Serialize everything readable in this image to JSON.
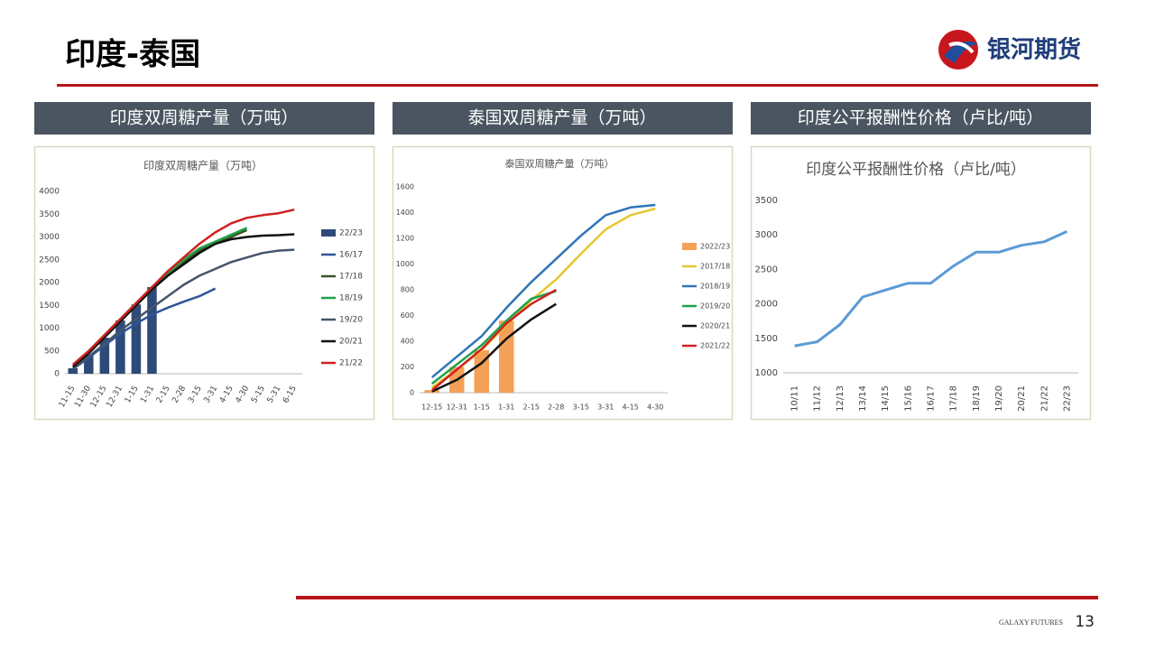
{
  "header": {
    "title": "印度-泰国",
    "logo": "银河期货"
  },
  "panels": [
    "印度双周糖产量（万吨）",
    "泰国双周糖产量（万吨）",
    "印度公平报酬性价格（卢比/吨）"
  ],
  "footer": {
    "brand": "GALAXY FUTURES",
    "page": "13"
  },
  "chart_data": [
    {
      "type": "combo",
      "title": "印度双周糖产量（万吨）",
      "categories": [
        "11-15",
        "11-30",
        "12-15",
        "12-31",
        "1-15",
        "1-31",
        "2-15",
        "2-28",
        "3-15",
        "3-31",
        "4-15",
        "4-30",
        "5-15",
        "5-31",
        "6-15"
      ],
      "ylim": [
        0,
        4000
      ],
      "yticks": [
        0,
        500,
        1000,
        1500,
        2000,
        2500,
        3000,
        3500,
        4000
      ],
      "series": [
        {
          "name": "22/23",
          "type": "bar",
          "color": "#2e4a78",
          "values": [
            120,
            420,
            790,
            1170,
            1520,
            1900,
            null,
            null,
            null,
            null,
            null,
            null,
            null,
            null,
            null
          ]
        },
        {
          "name": "16/17",
          "type": "line",
          "color": "#2f5597",
          "values": [
            100,
            350,
            620,
            880,
            1100,
            1300,
            1450,
            1580,
            1700,
            1870,
            null,
            null,
            null,
            null,
            null
          ]
        },
        {
          "name": "17/18",
          "type": "line",
          "color": "#375623",
          "values": [
            150,
            450,
            800,
            1150,
            1500,
            1850,
            2150,
            2450,
            2700,
            2850,
            3000,
            3150,
            null,
            null,
            null
          ]
        },
        {
          "name": "18/19",
          "type": "line",
          "color": "#22a04b",
          "values": [
            200,
            500,
            850,
            1200,
            1550,
            1900,
            2200,
            2500,
            2750,
            2900,
            3050,
            3200,
            null,
            null,
            null
          ]
        },
        {
          "name": "19/20",
          "type": "line",
          "color": "#44546a",
          "values": [
            100,
            380,
            650,
            950,
            1200,
            1450,
            1700,
            1950,
            2150,
            2300,
            2450,
            2550,
            2650,
            2700,
            2720
          ]
        },
        {
          "name": "20/21",
          "type": "line",
          "color": "#111111",
          "values": [
            150,
            450,
            800,
            1150,
            1500,
            1850,
            2150,
            2400,
            2650,
            2850,
            2950,
            3000,
            3030,
            3040,
            3060
          ]
        },
        {
          "name": "21/22",
          "type": "line",
          "color": "#d02020",
          "values": [
            200,
            500,
            850,
            1200,
            1550,
            1900,
            2250,
            2550,
            2850,
            3100,
            3300,
            3420,
            3480,
            3520,
            3600
          ]
        }
      ]
    },
    {
      "type": "combo",
      "title": "泰国双周糖产量（万吨）",
      "categories": [
        "12-15",
        "12-31",
        "1-15",
        "1-31",
        "2-15",
        "2-28",
        "3-15",
        "3-31",
        "4-15",
        "4-30"
      ],
      "ylim": [
        0,
        1600
      ],
      "yticks": [
        0,
        200,
        400,
        600,
        800,
        1000,
        1200,
        1400,
        1600
      ],
      "series": [
        {
          "name": "2022/23",
          "type": "bar",
          "color": "#f4a057",
          "values": [
            20,
            200,
            330,
            560,
            null,
            null,
            null,
            null,
            null,
            null
          ]
        },
        {
          "name": "2017/18",
          "type": "line",
          "color": "#e6c62e",
          "values": [
            40,
            180,
            330,
            530,
            720,
            880,
            1080,
            1270,
            1380,
            1430
          ]
        },
        {
          "name": "2018/19",
          "type": "line",
          "color": "#2e75b6",
          "values": [
            120,
            280,
            440,
            660,
            860,
            1040,
            1220,
            1380,
            1440,
            1460
          ]
        },
        {
          "name": "2019/20",
          "type": "line",
          "color": "#22a04b",
          "values": [
            70,
            220,
            370,
            560,
            730,
            790,
            null,
            null,
            null,
            null
          ]
        },
        {
          "name": "2020/21",
          "type": "line",
          "color": "#111111",
          "values": [
            10,
            100,
            230,
            420,
            570,
            690,
            null,
            null,
            null,
            null
          ]
        },
        {
          "name": "2021/22",
          "type": "line",
          "color": "#d02020",
          "values": [
            20,
            180,
            340,
            540,
            690,
            800,
            null,
            null,
            null,
            null
          ]
        }
      ]
    },
    {
      "type": "line",
      "title": "印度公平报酬性价格（卢比/吨）",
      "categories": [
        "10/11",
        "11/12",
        "12/13",
        "13/14",
        "14/15",
        "15/16",
        "16/17",
        "17/18",
        "18/19",
        "19/20",
        "20/21",
        "21/22",
        "22/23"
      ],
      "ylim": [
        1000,
        3500
      ],
      "yticks": [
        1000,
        1500,
        2000,
        2500,
        3000,
        3500
      ],
      "color": "#5b9bd5",
      "values": [
        1391,
        1450,
        1700,
        2100,
        2200,
        2300,
        2300,
        2550,
        2750,
        2750,
        2850,
        2900,
        3050
      ]
    }
  ]
}
